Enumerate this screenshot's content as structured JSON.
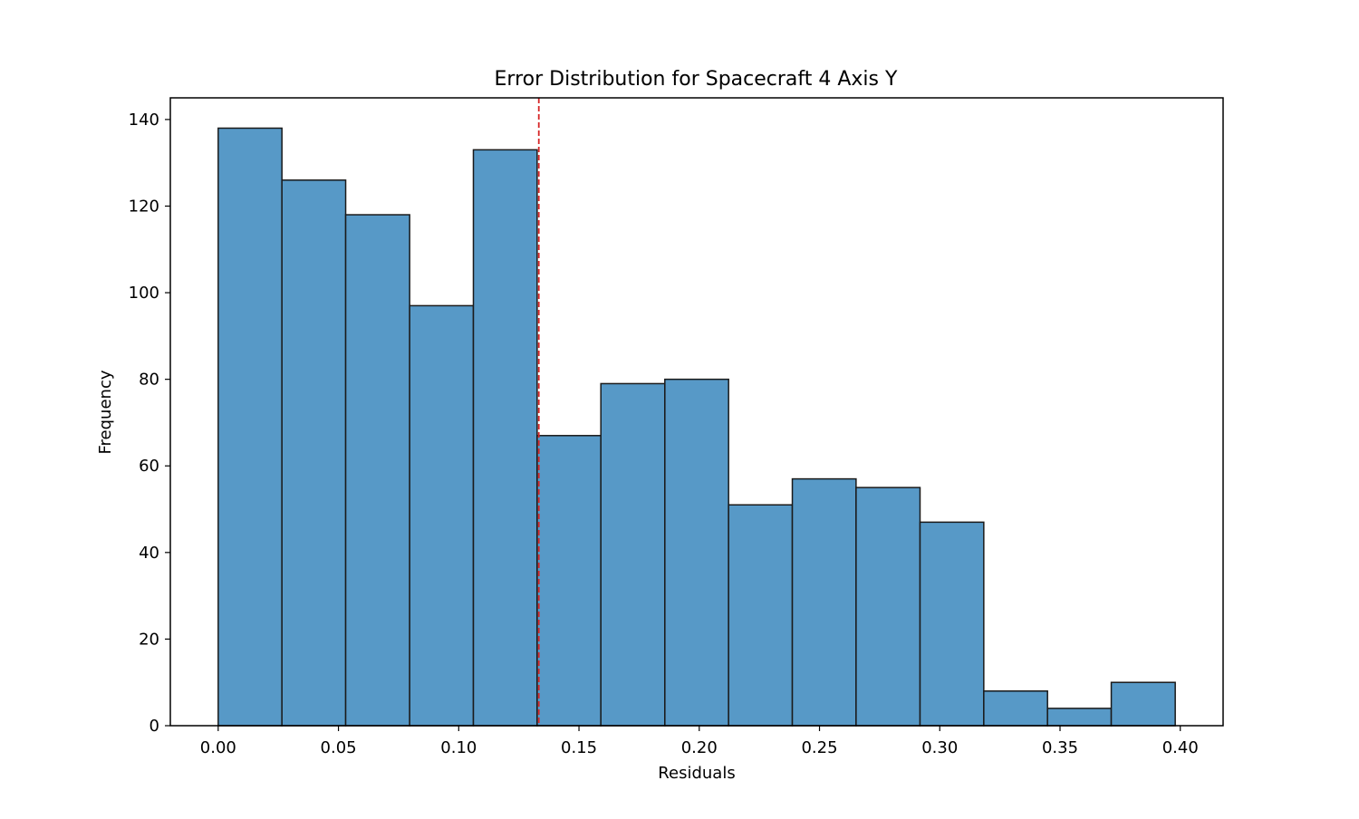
{
  "chart_data": {
    "type": "bar",
    "title": "Error Distribution for Spacecraft 4 Axis Y",
    "xlabel": "Residuals",
    "ylabel": "Frequency",
    "bin_edges": [
      0.0,
      0.0265,
      0.053,
      0.0796,
      0.1061,
      0.1326,
      0.1591,
      0.1857,
      0.2122,
      0.2387,
      0.2652,
      0.2918,
      0.3183,
      0.3448,
      0.3713,
      0.3979
    ],
    "values": [
      138,
      126,
      118,
      97,
      133,
      67,
      79,
      80,
      51,
      57,
      55,
      47,
      8,
      4,
      10
    ],
    "xlim": [
      -0.0199,
      0.4178
    ],
    "ylim": [
      0,
      145
    ],
    "x_ticks": [
      "0.00",
      "0.05",
      "0.10",
      "0.15",
      "0.20",
      "0.25",
      "0.30",
      "0.35",
      "0.40"
    ],
    "y_ticks": [
      "0",
      "20",
      "40",
      "60",
      "80",
      "100",
      "120",
      "140"
    ],
    "vline": {
      "x": 0.1333,
      "color": "#d62728",
      "style": "dashed"
    },
    "bar_color": "#5799c7",
    "edge_color": "#1a1a1a",
    "grid": false,
    "legend": "none"
  }
}
